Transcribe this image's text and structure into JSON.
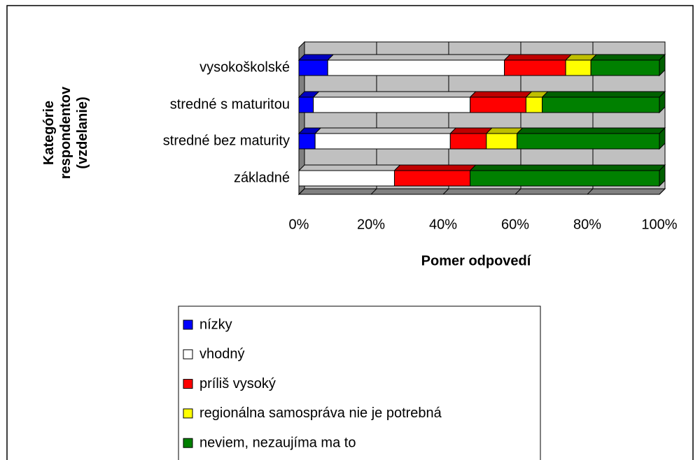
{
  "chart_data": {
    "type": "stacked_barh",
    "categories": [
      "vysokoškolské",
      "stredné s maturitou",
      "stredné bez maturity",
      "základné"
    ],
    "series": [
      {
        "name": "nízky",
        "color": "#0000ff",
        "values": [
          8,
          4,
          4.5,
          0
        ]
      },
      {
        "name": "vhodný",
        "color": "#ffffff",
        "values": [
          49,
          43.5,
          37.5,
          26.5
        ]
      },
      {
        "name": "príliš vysoký",
        "color": "#ff0000",
        "values": [
          17,
          15.5,
          10,
          21
        ]
      },
      {
        "name": "regionálna samospráva nie je potrebná",
        "color": "#ffff00",
        "values": [
          7,
          4.5,
          8.5,
          0
        ]
      },
      {
        "name": "neviem, nezaujíma ma to",
        "color": "#008000",
        "values": [
          19,
          32.5,
          39.5,
          52.5
        ]
      }
    ],
    "xlim": [
      0,
      100
    ],
    "xticks": [
      {
        "value": 0,
        "label": "0%"
      },
      {
        "value": 20,
        "label": "20%"
      },
      {
        "value": 40,
        "label": "40%"
      },
      {
        "value": 60,
        "label": "60%"
      },
      {
        "value": 80,
        "label": "80%"
      },
      {
        "value": 100,
        "label": "100%"
      }
    ],
    "xlabel": "Pomer odpovedí",
    "ylabel_lines": [
      "Kategórie",
      "respondentov",
      "(vzdelanie)"
    ],
    "grid": true
  }
}
